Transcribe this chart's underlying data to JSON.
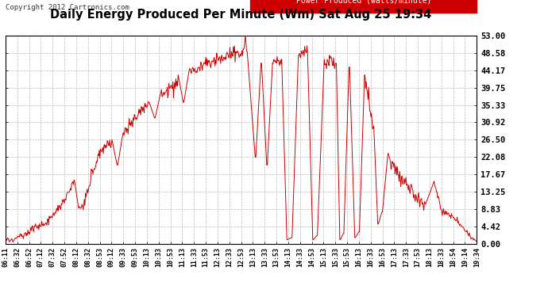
{
  "title": "Daily Energy Produced Per Minute (Wm) Sat Aug 25 19:34",
  "copyright": "Copyright 2012 Cartronics.com",
  "legend_label": "Power Produced (watts/minute)",
  "legend_bg": "#cc0000",
  "legend_text_color": "#ffffff",
  "line_color": "#cc0000",
  "background_color": "#ffffff",
  "grid_color": "#bbbbbb",
  "ylim": [
    0,
    53.0
  ],
  "yticks": [
    0.0,
    4.42,
    8.83,
    13.25,
    17.67,
    22.08,
    26.5,
    30.92,
    35.33,
    39.75,
    44.17,
    48.58,
    53.0
  ],
  "xtick_labels": [
    "06:11",
    "06:32",
    "06:52",
    "07:12",
    "07:32",
    "07:52",
    "08:12",
    "08:32",
    "08:53",
    "09:12",
    "09:33",
    "09:53",
    "10:13",
    "10:33",
    "10:53",
    "11:13",
    "11:33",
    "11:53",
    "12:13",
    "12:33",
    "12:53",
    "13:13",
    "13:33",
    "13:53",
    "14:13",
    "14:33",
    "14:53",
    "15:13",
    "15:33",
    "15:53",
    "16:13",
    "16:33",
    "16:53",
    "17:13",
    "17:33",
    "17:53",
    "18:13",
    "18:33",
    "18:54",
    "19:14",
    "19:34"
  ]
}
